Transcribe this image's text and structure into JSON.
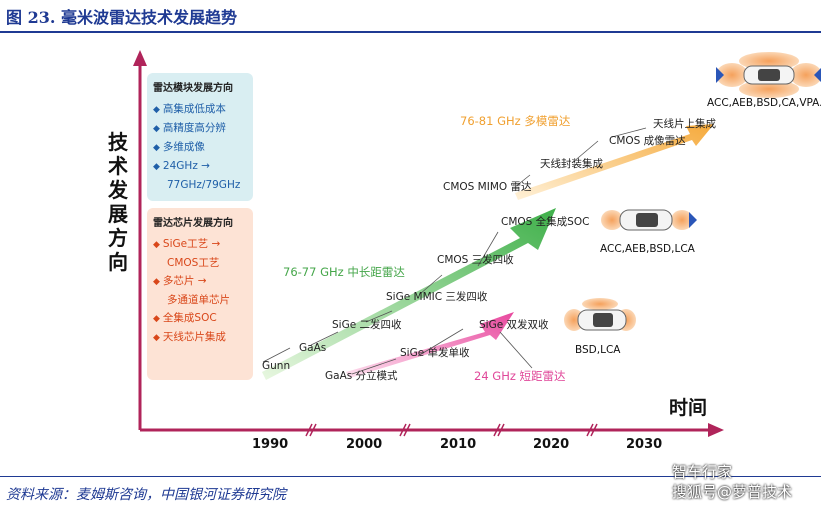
{
  "title": "图 23. 毫米波雷达技术发展趋势",
  "source": "资料来源：麦姆斯咨询，中国银河证券研究院",
  "watermark": [
    "智车行家",
    "搜狐号@萝普技术"
  ],
  "y_axis_label": "技术发展方向",
  "x_axis_label": "时间",
  "x_ticks": [
    "1990",
    "2000",
    "2010",
    "2020",
    "2030"
  ],
  "module_box": {
    "title": "雷达模块发展方向",
    "items": [
      "高集成低成本",
      "高精度高分辨",
      "多维成像",
      "24GHz →",
      "77GHz/79GHz"
    ]
  },
  "chip_box": {
    "title": "雷达芯片发展方向",
    "items": [
      "SiGe工艺 →",
      "CMOS工艺",
      "多芯片 →",
      "多通道单芯片",
      "全集成SOC",
      "天线芯片集成"
    ]
  },
  "colors": {
    "blue": "#1f5fa8",
    "green": "#5cc05c",
    "orange": "#f5a93a",
    "pink": "#ee5aa8",
    "axis": "#b0245a"
  },
  "arrows": {
    "green": {
      "label": "76-77 GHz 中长距雷达"
    },
    "orange": {
      "label": "76-81 GHz 多模雷达"
    },
    "pink": {
      "label": "24 GHz 短距雷达"
    }
  },
  "milestones": {
    "gunn": "Gunn",
    "gaas": "GaAs",
    "sige_tx_rx": "SiGe 二发四收",
    "sige_mmic": "SiGe MMIC 三发四收",
    "cmos_3t4r": "CMOS 三发四收",
    "cmos_soc": "CMOS 全集成SOC",
    "cmos_mimo": "CMOS MIMO 雷达",
    "aip": "天线封装集成",
    "cmos_imaging": "CMOS 成像雷达",
    "aoc": "天线片上集成",
    "gaas_discrete": "GaAs 分立模式",
    "sige_single": "SiGe 单发单收",
    "sige_dual": "SiGe 双发双收"
  },
  "adas": {
    "top": "ACC,AEB,BSD,CA,VPA...",
    "mid": "ACC,AEB,BSD,LCA",
    "bottom": "BSD,LCA"
  }
}
